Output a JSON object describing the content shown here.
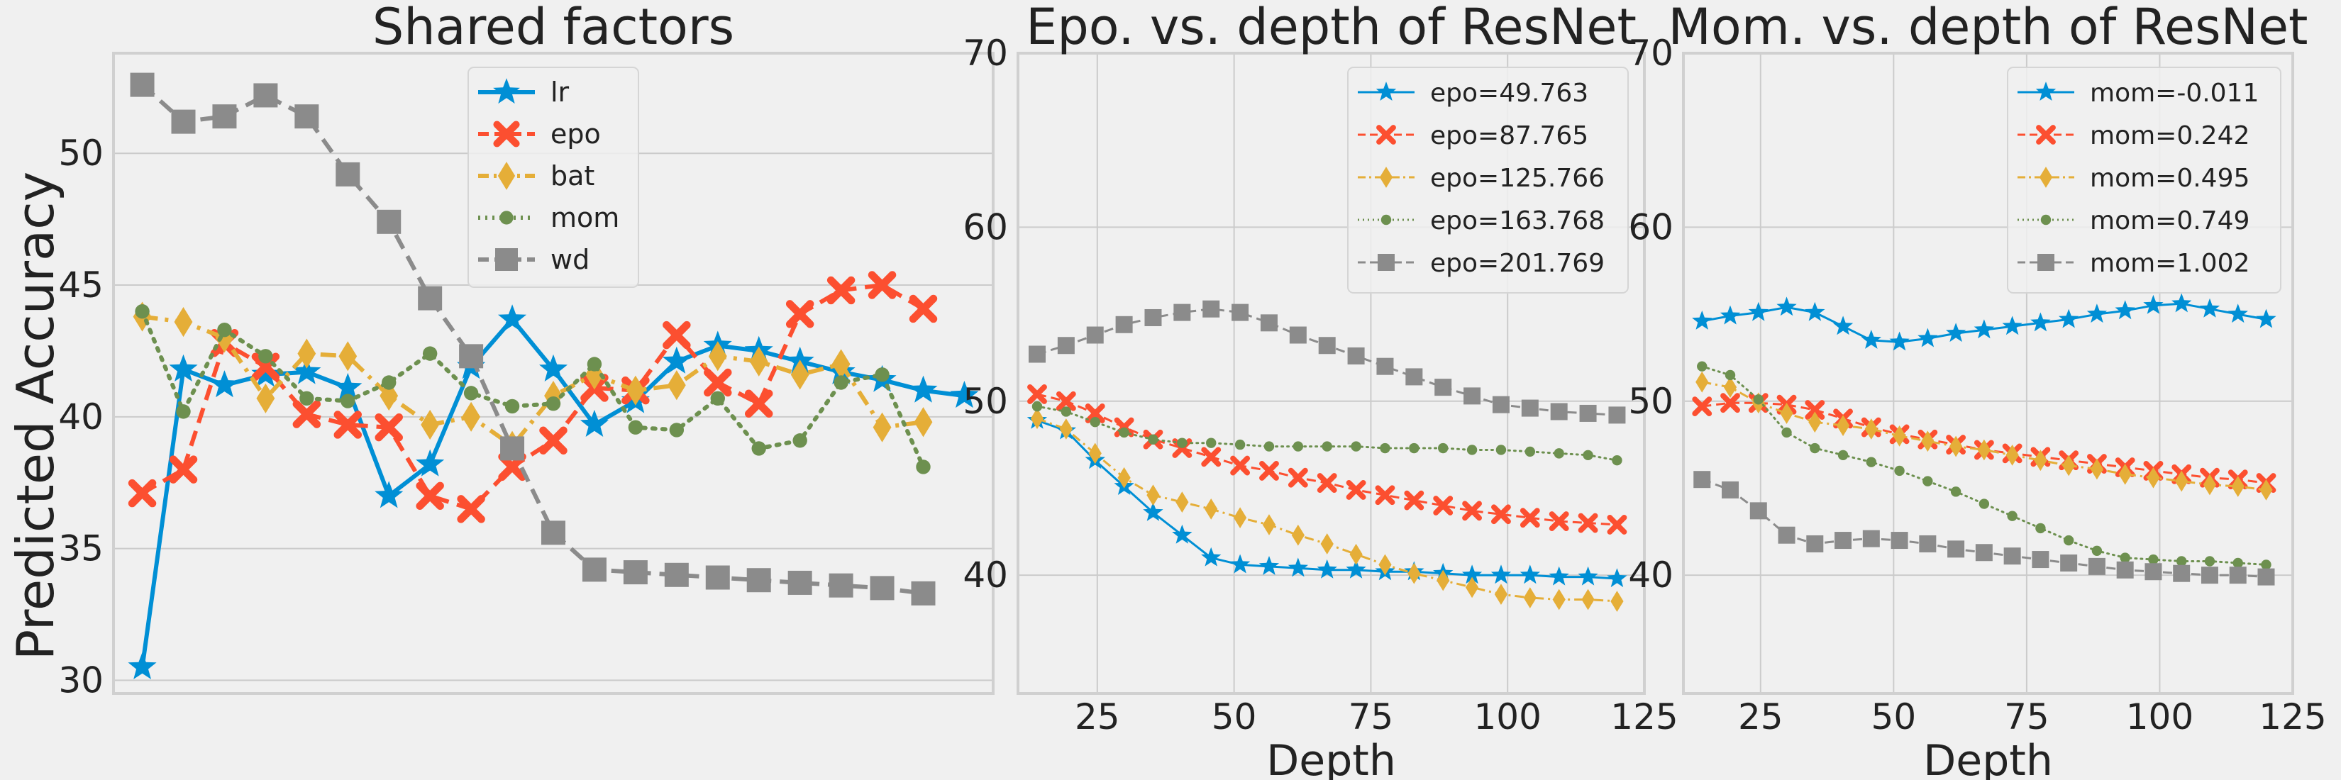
{
  "colors": {
    "blue": "#008fd5",
    "red": "#fc4f30",
    "yellow": "#e5ae38",
    "green": "#6d904f",
    "gray": "#8b8b8b"
  },
  "chart_data": [
    {
      "id": "shared",
      "type": "line",
      "title": "Shared factors",
      "xlabel": "",
      "ylabel": "Predicted Accuracy",
      "ylim": [
        29.5,
        53.8
      ],
      "xlim": [
        -0.7,
        20.7
      ],
      "yticks": [
        30,
        35,
        40,
        45,
        50
      ],
      "xticks": [],
      "legend_loc": "top-center",
      "x": [
        0,
        1,
        2,
        3,
        4,
        5,
        6,
        7,
        8,
        9,
        10,
        11,
        12,
        13,
        14,
        15,
        16,
        17,
        18,
        19,
        20
      ],
      "series": [
        {
          "name": "lr",
          "color": "blue",
          "marker": "star",
          "dash": "solid",
          "values": [
            30.5,
            41.8,
            41.2,
            41.6,
            41.7,
            41.1,
            37.0,
            38.2,
            41.9,
            43.7,
            41.8,
            39.7,
            40.6,
            42.1,
            42.7,
            42.5,
            42.1,
            41.7,
            41.4,
            41.0,
            40.8
          ]
        },
        {
          "name": "epo",
          "color": "red",
          "marker": "x",
          "dash": "dashed",
          "values": [
            37.1,
            38.0,
            42.8,
            41.9,
            40.1,
            39.7,
            39.6,
            37.0,
            36.5,
            38.1,
            39.1,
            41.1,
            41.0,
            43.1,
            41.3,
            40.5,
            43.9,
            44.8,
            45.0,
            44.1,
            null
          ]
        },
        {
          "name": "bat",
          "color": "yellow",
          "marker": "diamond",
          "dash": "dashdot",
          "values": [
            43.8,
            43.6,
            43.0,
            40.7,
            42.4,
            42.3,
            40.8,
            39.7,
            40.0,
            38.9,
            40.8,
            41.6,
            41.0,
            41.2,
            42.3,
            42.1,
            41.6,
            42.0,
            39.6,
            39.8,
            null
          ]
        },
        {
          "name": "mom",
          "color": "green",
          "marker": "circle",
          "dash": "dotted",
          "values": [
            44.0,
            40.2,
            43.3,
            42.3,
            40.7,
            40.6,
            41.3,
            42.4,
            40.9,
            40.4,
            40.5,
            42.0,
            39.6,
            39.5,
            40.7,
            38.8,
            39.1,
            41.3,
            41.6,
            38.1,
            null
          ]
        },
        {
          "name": "wd",
          "color": "gray",
          "marker": "square",
          "dash": "dashed",
          "values": [
            52.6,
            51.2,
            51.4,
            52.2,
            51.4,
            49.2,
            47.4,
            44.5,
            42.3,
            38.8,
            35.6,
            34.2,
            34.1,
            34.0,
            33.9,
            33.8,
            33.7,
            33.6,
            33.5,
            33.3,
            null
          ]
        }
      ]
    },
    {
      "id": "epo-depth",
      "type": "line",
      "title": "Epo. vs. depth of ResNet",
      "xlabel": "Depth",
      "ylabel": "",
      "ylim": [
        33.2,
        70
      ],
      "xlim": [
        10.5,
        125
      ],
      "yticks": [
        40,
        50,
        60,
        70
      ],
      "xticks": [
        25,
        50,
        75,
        100,
        125
      ],
      "legend_loc": "top-right",
      "x": [
        14,
        19.3,
        24.6,
        29.9,
        35.2,
        40.5,
        45.8,
        51.1,
        56.4,
        61.7,
        67,
        72.3,
        77.6,
        82.9,
        88.2,
        93.5,
        98.8,
        104.1,
        109.4,
        114.7,
        120
      ],
      "series": [
        {
          "name": "epo=49.763",
          "color": "blue",
          "marker": "star",
          "dash": "solid",
          "values": [
            48.9,
            48.3,
            46.6,
            45.1,
            43.6,
            42.3,
            41.0,
            40.6,
            40.5,
            40.4,
            40.3,
            40.3,
            40.2,
            40.2,
            40.1,
            40.0,
            40.0,
            40.0,
            39.9,
            39.9,
            39.8
          ]
        },
        {
          "name": "epo=87.765",
          "color": "red",
          "marker": "x",
          "dash": "dashed",
          "values": [
            50.4,
            50.0,
            49.3,
            48.5,
            47.8,
            47.3,
            46.8,
            46.3,
            46.0,
            45.6,
            45.3,
            44.9,
            44.6,
            44.3,
            44.0,
            43.7,
            43.5,
            43.3,
            43.1,
            43.0,
            42.9
          ]
        },
        {
          "name": "epo=125.766",
          "color": "yellow",
          "marker": "diamond",
          "dash": "dashdot",
          "values": [
            49.0,
            48.4,
            47.0,
            45.6,
            44.6,
            44.2,
            43.8,
            43.3,
            42.9,
            42.3,
            41.8,
            41.2,
            40.6,
            40.1,
            39.7,
            39.3,
            38.9,
            38.7,
            38.6,
            38.6,
            38.5
          ]
        },
        {
          "name": "epo=163.768",
          "color": "green",
          "marker": "circle",
          "dash": "dotted",
          "values": [
            49.7,
            49.4,
            48.8,
            48.2,
            47.8,
            47.6,
            47.6,
            47.5,
            47.4,
            47.4,
            47.4,
            47.4,
            47.3,
            47.3,
            47.3,
            47.2,
            47.2,
            47.1,
            47.0,
            46.9,
            46.6
          ]
        },
        {
          "name": "epo=201.769",
          "color": "gray",
          "marker": "square",
          "dash": "dashed",
          "values": [
            52.7,
            53.2,
            53.8,
            54.4,
            54.8,
            55.1,
            55.3,
            55.1,
            54.5,
            53.8,
            53.2,
            52.6,
            52.0,
            51.4,
            50.8,
            50.3,
            49.8,
            49.6,
            49.4,
            49.3,
            49.2
          ]
        }
      ]
    },
    {
      "id": "mom-depth",
      "type": "line",
      "title": "Mom. vs. depth of ResNet",
      "xlabel": "Depth",
      "ylabel": "",
      "ylim": [
        33.2,
        70
      ],
      "xlim": [
        10.5,
        125
      ],
      "yticks": [
        40,
        50,
        60,
        70
      ],
      "xticks": [
        25,
        50,
        75,
        100,
        125
      ],
      "legend_loc": "top-right",
      "x": [
        14,
        19.3,
        24.6,
        29.9,
        35.2,
        40.5,
        45.8,
        51.1,
        56.4,
        61.7,
        67,
        72.3,
        77.6,
        82.9,
        88.2,
        93.5,
        98.8,
        104.1,
        109.4,
        114.7,
        120
      ],
      "series": [
        {
          "name": "mom=-0.011",
          "color": "blue",
          "marker": "star",
          "dash": "solid",
          "values": [
            54.6,
            54.9,
            55.1,
            55.4,
            55.1,
            54.3,
            53.5,
            53.4,
            53.6,
            53.9,
            54.1,
            54.3,
            54.5,
            54.7,
            55.0,
            55.2,
            55.5,
            55.6,
            55.3,
            55.0,
            54.7
          ]
        },
        {
          "name": "mom=0.242",
          "color": "red",
          "marker": "x",
          "dash": "dashed",
          "values": [
            49.7,
            49.9,
            49.9,
            49.8,
            49.5,
            49.0,
            48.5,
            48.1,
            47.8,
            47.5,
            47.2,
            47.0,
            46.8,
            46.6,
            46.4,
            46.2,
            46.0,
            45.8,
            45.6,
            45.5,
            45.3
          ]
        },
        {
          "name": "mom=0.495",
          "color": "yellow",
          "marker": "diamond",
          "dash": "dashdot",
          "values": [
            51.1,
            50.8,
            49.9,
            49.3,
            48.8,
            48.6,
            48.4,
            48.0,
            47.7,
            47.4,
            47.2,
            46.9,
            46.6,
            46.3,
            46.1,
            45.8,
            45.6,
            45.4,
            45.2,
            45.1,
            44.9
          ]
        },
        {
          "name": "mom=0.749",
          "color": "green",
          "marker": "circle",
          "dash": "dotted",
          "values": [
            52.0,
            51.5,
            50.1,
            48.2,
            47.3,
            46.9,
            46.5,
            46.0,
            45.4,
            44.8,
            44.1,
            43.4,
            42.7,
            42.0,
            41.4,
            41.0,
            40.9,
            40.8,
            40.8,
            40.7,
            40.6
          ]
        },
        {
          "name": "mom=1.002",
          "color": "gray",
          "marker": "square",
          "dash": "dashed",
          "values": [
            45.5,
            44.9,
            43.7,
            42.3,
            41.8,
            42.0,
            42.1,
            42.0,
            41.8,
            41.5,
            41.3,
            41.1,
            40.9,
            40.7,
            40.5,
            40.3,
            40.2,
            40.1,
            40.0,
            40.0,
            39.9
          ]
        }
      ]
    }
  ]
}
